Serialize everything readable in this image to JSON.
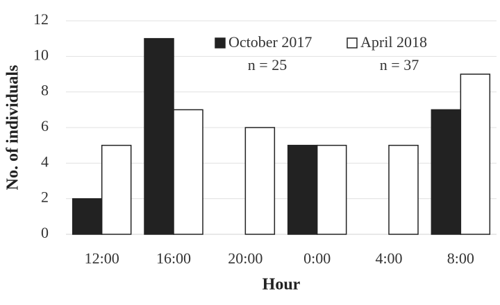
{
  "chart_data": {
    "type": "bar",
    "categories": [
      "12:00",
      "16:00",
      "20:00",
      "0:00",
      "4:00",
      "8:00"
    ],
    "series": [
      {
        "name": "October 2017",
        "color": "#222222",
        "values": [
          2,
          11,
          0,
          5,
          0,
          7
        ]
      },
      {
        "name": "April 2018",
        "color": "#ffffff",
        "values": [
          5,
          7,
          6,
          5,
          5,
          9
        ]
      }
    ],
    "annotations": [
      "n = 25",
      "n = 37"
    ],
    "x_label": "Hour",
    "y_label": "No. of individuals",
    "ylim": [
      0,
      12
    ],
    "yticks": [
      0,
      2,
      4,
      6,
      8,
      10,
      12
    ],
    "grid": true,
    "legend": "top"
  }
}
